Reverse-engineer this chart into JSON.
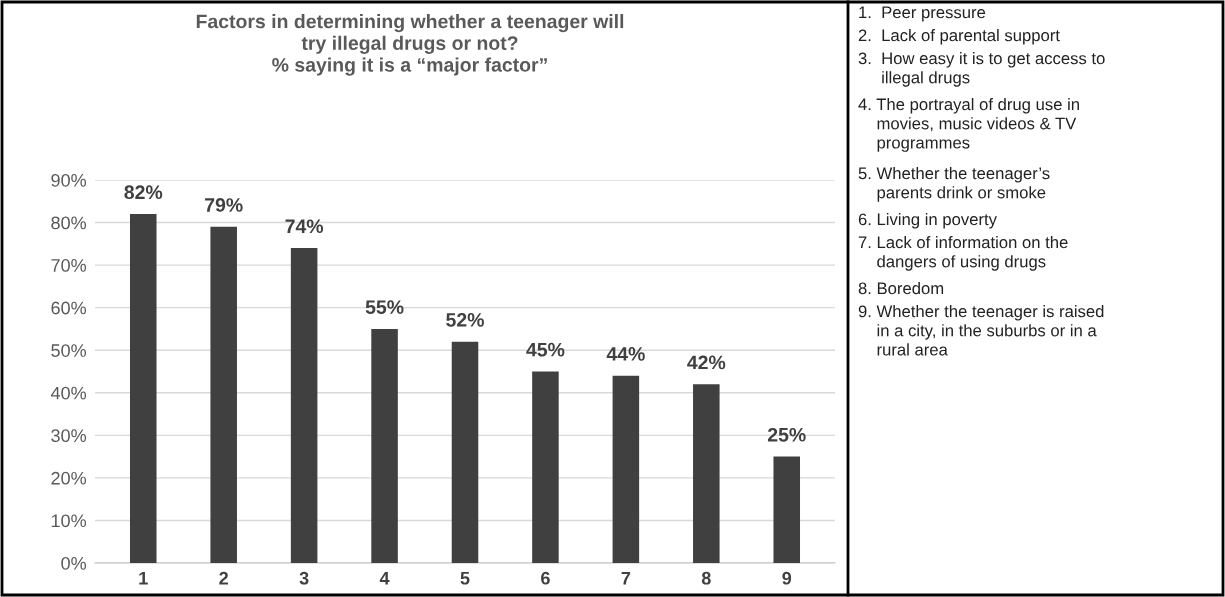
{
  "chart_data": {
    "type": "bar",
    "title": "Factors in determining whether a teenager will\ntry illegal drugs or not?\n% saying it is a “major factor”",
    "categories": [
      "1",
      "2",
      "3",
      "4",
      "5",
      "6",
      "7",
      "8",
      "9"
    ],
    "values": [
      82,
      79,
      74,
      55,
      52,
      45,
      44,
      42,
      25
    ],
    "color": "#404040",
    "ylim": [
      0,
      90
    ],
    "yticks": [
      {
        "value": 0,
        "label": "0%"
      },
      {
        "value": 10,
        "label": "10%"
      },
      {
        "value": 20,
        "label": "20%"
      },
      {
        "value": 30,
        "label": "30%"
      },
      {
        "value": 40,
        "label": "40%"
      },
      {
        "value": 50,
        "label": "50%"
      },
      {
        "value": 60,
        "label": "60%"
      },
      {
        "value": 70,
        "label": "70%"
      },
      {
        "value": 80,
        "label": "80%"
      },
      {
        "value": 90,
        "label": "90%"
      }
    ],
    "grid": "y",
    "value_labels": [
      "82%",
      "79%",
      "74%",
      "55%",
      "52%",
      "45%",
      "44%",
      "42%",
      "25%"
    ],
    "annotations": [
      "1.  Peer pressure",
      "2.  Lack of parental support",
      "3.  How easy it is to get access to\n     illegal drugs",
      "4. The portrayal of drug use in\n    movies, music videos & TV\n    programmes",
      "5. Whether the teenager’s\n    parents drink or smoke",
      "6. Living in poverty",
      "7. Lack of information on the\n    dangers of using drugs",
      "8. Boredom",
      "9. Whether the teenager is raised\n    in a city, in the suburbs or in a\n    rural area"
    ]
  }
}
